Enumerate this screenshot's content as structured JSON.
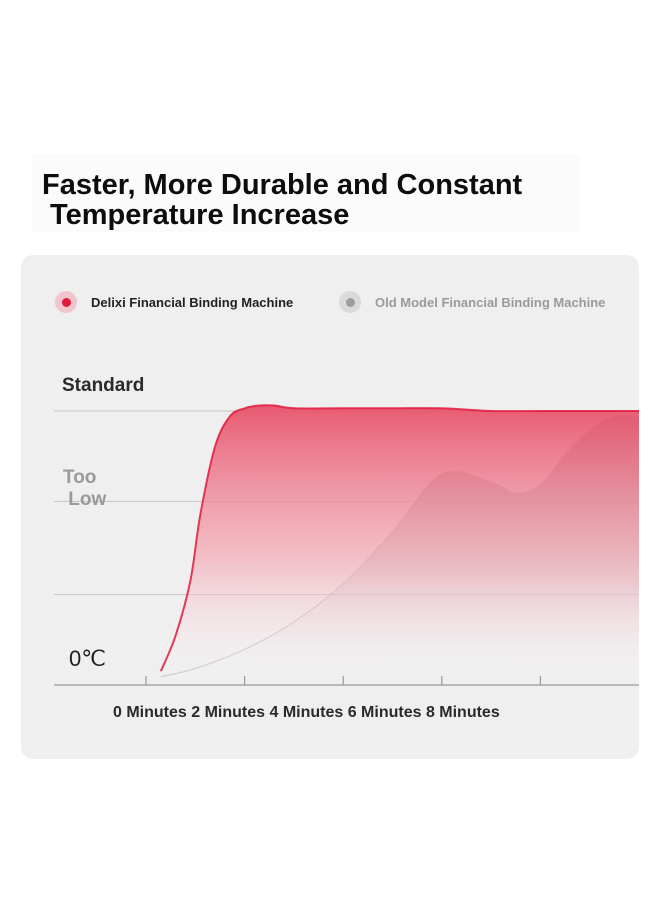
{
  "title": "Faster, More Durable and Constant\n Temperature Increase",
  "chart_data": {
    "type": "area",
    "title": "Faster, More Durable and Constant Temperature Increase",
    "xlabel": "",
    "ylabel": "",
    "x_tick_labels_text": "0 Minutes 2 Minutes 4 Minutes 6 Minutes 8 Minutes",
    "categories": [
      "0 Minutes",
      "2 Minutes",
      "4 Minutes",
      "6 Minutes",
      "8 Minutes"
    ],
    "y_levels": {
      "standard": "Standard",
      "too_low": "Too\n Low",
      "zero": "0℃"
    },
    "series": [
      {
        "name": "Delixi Financial Binding Machine",
        "color": "#e01b3d",
        "x": [
          0.3,
          0.6,
          0.9,
          1.1,
          1.4,
          1.7,
          2.0,
          2.3,
          2.6,
          3.0,
          4.0,
          5.0,
          6.0,
          7.0,
          8.0,
          9.0,
          10.0
        ],
        "values": [
          0.05,
          0.18,
          0.38,
          0.62,
          0.87,
          0.98,
          1.01,
          1.02,
          1.02,
          1.01,
          1.01,
          1.01,
          1.01,
          1.0,
          1.0,
          1.0,
          1.0
        ]
      },
      {
        "name": "Old Model Financial Binding Machine",
        "color": "#9d9d9d",
        "x": [
          0.3,
          1.0,
          2.0,
          3.0,
          4.0,
          5.0,
          6.0,
          7.0,
          7.5,
          8.0,
          8.5,
          9.0,
          9.5,
          10.0
        ],
        "values": [
          0.03,
          0.06,
          0.13,
          0.23,
          0.37,
          0.56,
          0.77,
          0.74,
          0.7,
          0.73,
          0.84,
          0.93,
          0.98,
          0.98
        ]
      }
    ],
    "xlim": [
      0,
      10
    ],
    "ylim": [
      0,
      1.0
    ],
    "grid": true,
    "legend_position": "top"
  }
}
